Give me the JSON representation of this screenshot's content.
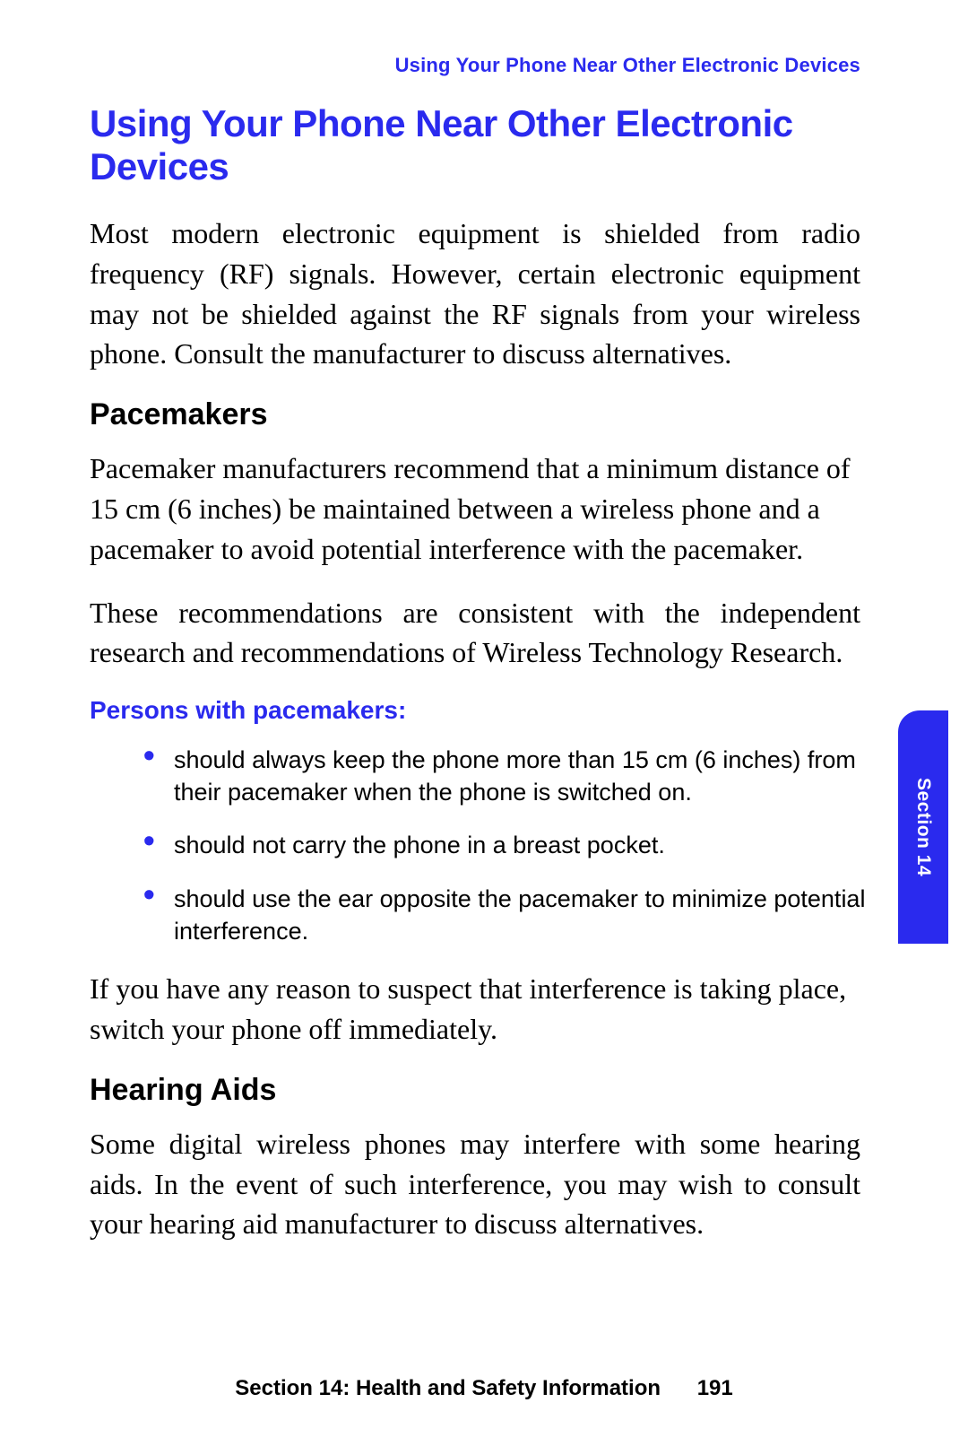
{
  "colors": {
    "accent": "#2a2aee",
    "text": "#000000",
    "background": "#ffffff",
    "tab_text": "#ffffff"
  },
  "typography": {
    "body_font": "Georgia, 'Times New Roman', serif",
    "heading_font": "Arial, Helvetica, sans-serif",
    "main_heading_size_pt": 31,
    "body_size_pt": 24,
    "sub_heading_size_pt": 25,
    "sub_heading3_size_pt": 21,
    "bullet_size_pt": 20,
    "footer_size_pt": 18
  },
  "running_header": "Using Your Phone Near Other Electronic Devices",
  "main_heading": "Using Your Phone Near Other Electronic Devices",
  "intro_para": "Most modern electronic equipment is shielded from radio frequency (RF) signals. However, certain electronic equipment may not be shielded against the RF signals from your wireless phone. Consult the manufacturer to discuss alternatives.",
  "pacemakers": {
    "heading": "Pacemakers",
    "para1": "Pacemaker manufacturers recommend that a minimum distance of 15 cm (6 inches) be maintained between a wireless phone and a pacemaker to avoid potential interference with the pacemaker.",
    "para2": "These recommendations are consistent with the independent research and recommendations of Wireless Technology Research.",
    "sub_heading": "Persons with pacemakers:",
    "bullets": [
      "should always keep the phone more than 15 cm (6 inches) from their pacemaker when the phone is switched on.",
      "should not carry the phone in a breast pocket.",
      "should use the ear opposite the pacemaker to minimize potential interference."
    ],
    "closing": "If you have any reason to suspect that interference is taking place, switch your phone off immediately."
  },
  "hearing_aids": {
    "heading": "Hearing Aids",
    "para": "Some digital wireless phones may interfere with some hearing aids. In the event of such interference, you may wish to consult your hearing aid manufacturer to discuss alternatives."
  },
  "side_tab": "Section 14",
  "footer": {
    "section_label": "Section 14: Health and Safety Information",
    "page_number": "191"
  }
}
